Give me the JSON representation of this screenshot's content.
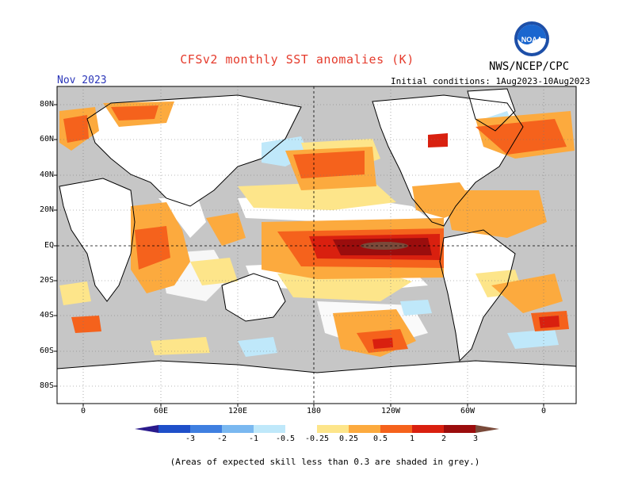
{
  "title": "CFSv2 monthly SST anomalies (K)",
  "forecast_month": "Nov 2023",
  "initial_conditions": "Initial conditions: 1Aug2023-10Aug2023",
  "agency": "NWS/NCEP/CPC",
  "logo_text": "NOAA",
  "map": {
    "projection": "cylindrical equidistant",
    "lat_labels": [
      "80N",
      "60N",
      "40N",
      "20N",
      "EQ",
      "20S",
      "40S",
      "60S",
      "80S"
    ],
    "lon_labels": [
      "0",
      "60E",
      "120E",
      "180",
      "120W",
      "60W",
      "0"
    ],
    "grid": "dotted",
    "ocean_masked_color": "#c8c8c8",
    "land_color": "#ffffff",
    "coastline_color": "#000000"
  },
  "colorbar": {
    "ticks": [
      "-3",
      "-2",
      "-1",
      "-0.5",
      "-0.25",
      "0.25",
      "0.5",
      "1",
      "2",
      "3"
    ],
    "colors": [
      "#2a1a8c",
      "#1f4fc9",
      "#3f7fe0",
      "#7ab8f0",
      "#bfe8fa",
      "#ffffff",
      "#fde58a",
      "#fcaa3e",
      "#f5621c",
      "#d9200f",
      "#9b0d0d",
      "#7a4a3a"
    ]
  },
  "footnote": "(Areas of expected skill less than 0.3 are shaded in grey.)"
}
